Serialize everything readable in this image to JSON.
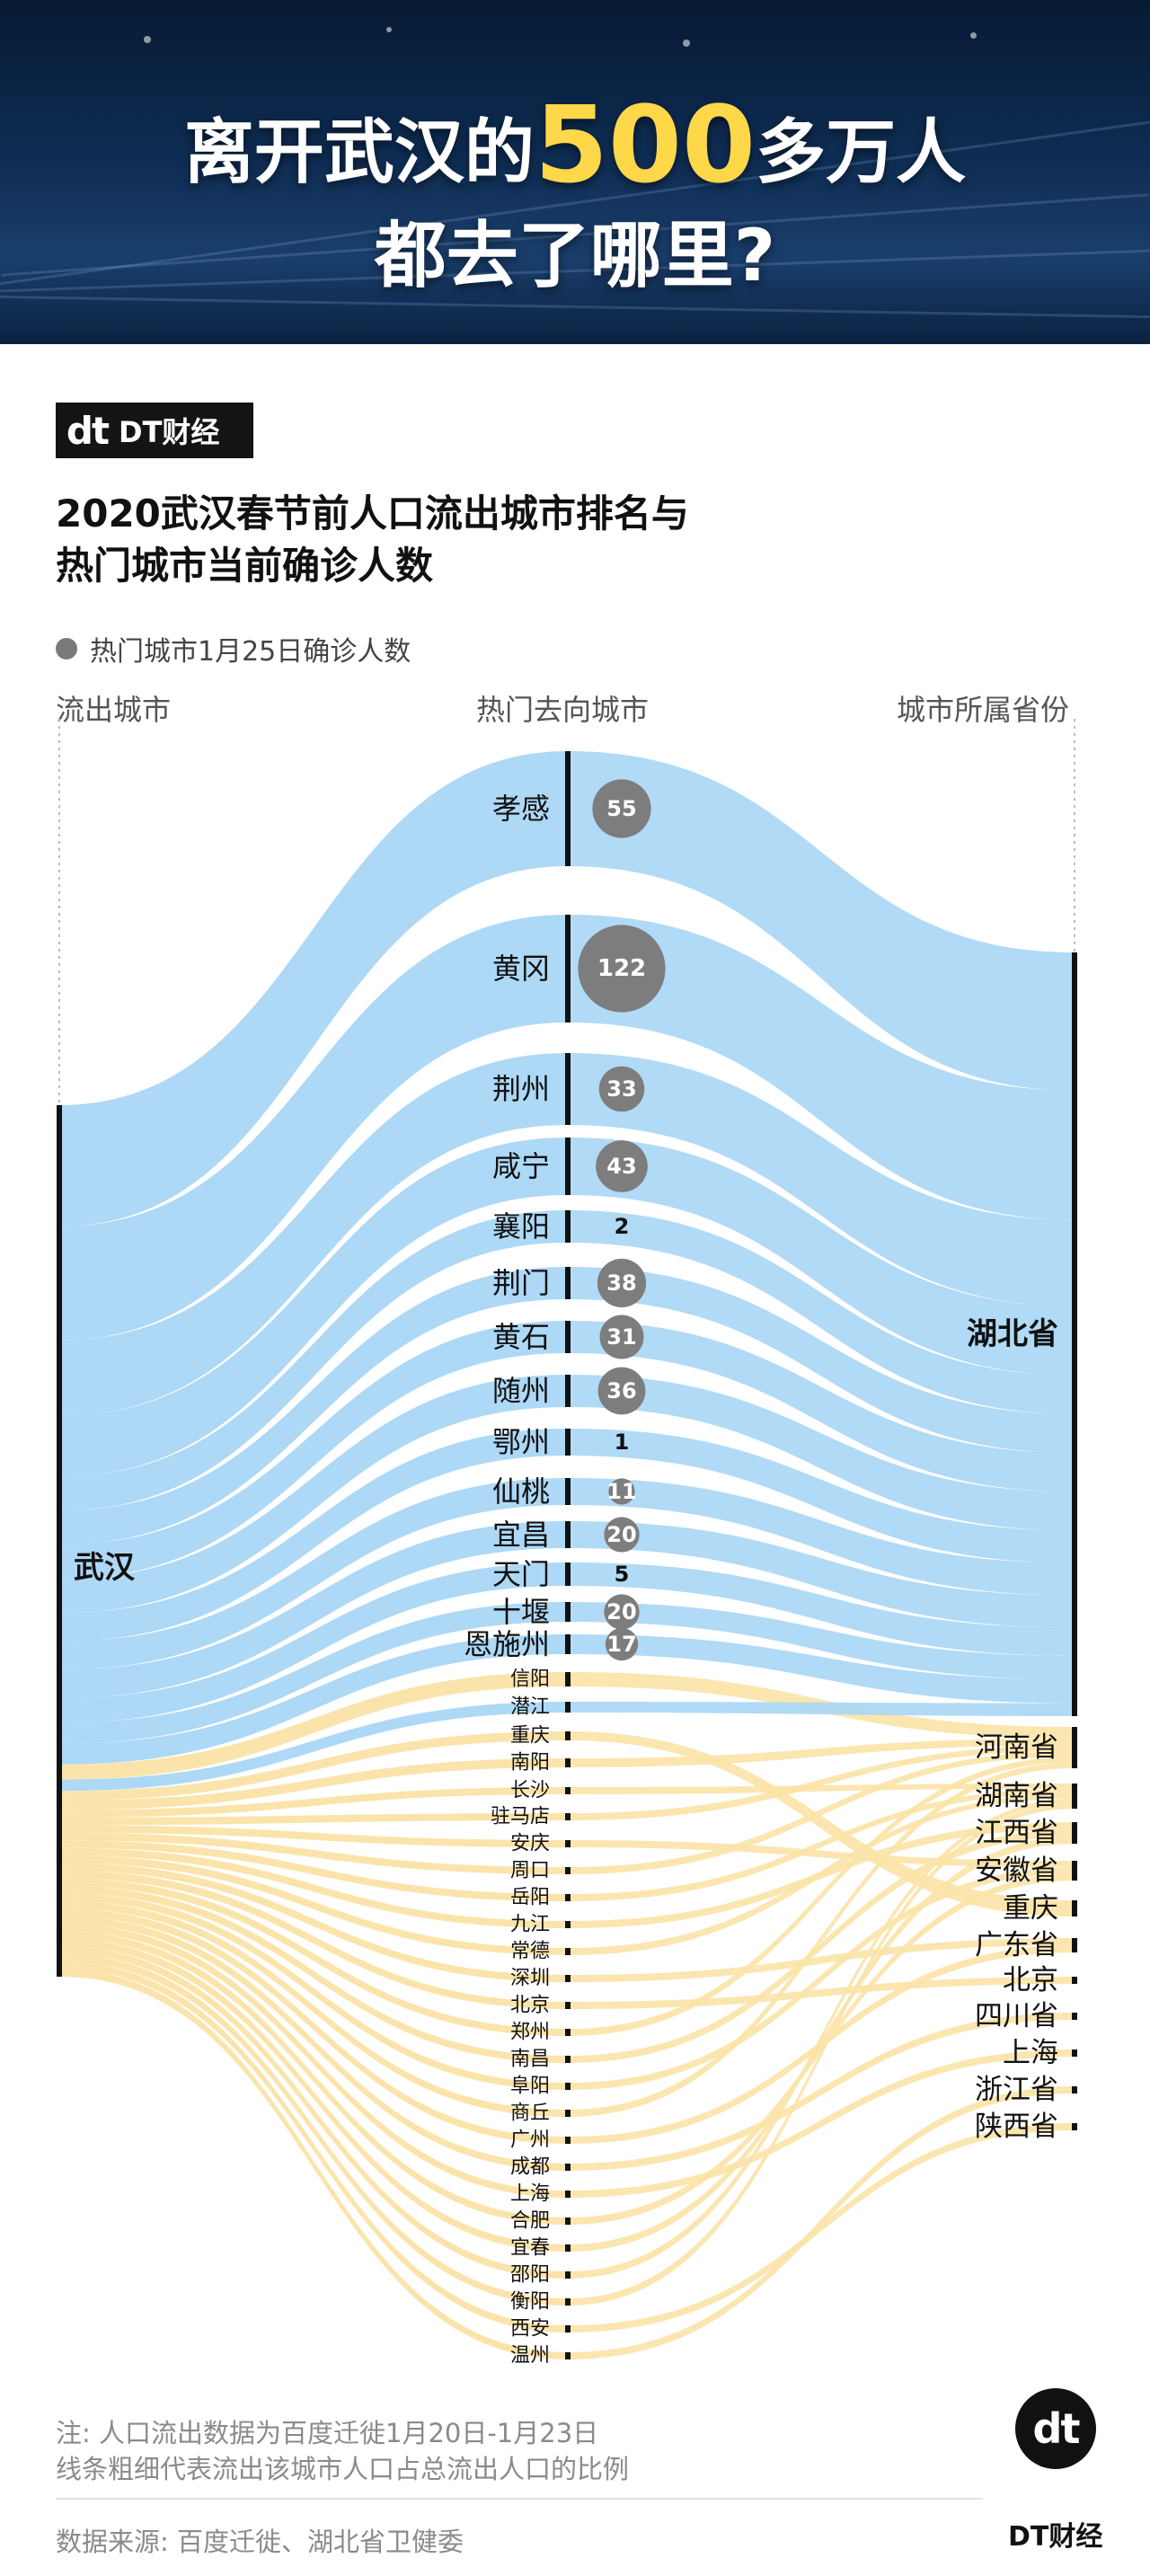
{
  "header": {
    "title_part1": "离开武汉的",
    "title_highlight": "500",
    "title_part2": "多万人",
    "title_line2": "都去了哪里?"
  },
  "brand": {
    "mark": "dt",
    "name": "DT财经"
  },
  "subtitle": {
    "line1": "2020武汉春节前人口流出城市排名与",
    "line2": "热门城市当前确诊人数"
  },
  "legend": {
    "label": "热门城市1月25日确诊人数",
    "dot_color": "#7a7a7a"
  },
  "columns": {
    "source": "流出城市",
    "target": "热门去向城市",
    "province": "城市所属省份"
  },
  "colors": {
    "hubei_flow": "#a9d6f5",
    "hubei_flow_dark": "#7fbde9",
    "other_flow": "#fbe3a7",
    "bubble": "#7d7d7d",
    "bar": "#111111"
  },
  "chart_data": {
    "type": "sankey",
    "source": "武汉",
    "cities": [
      {
        "name": "孝感",
        "confirmed": 55,
        "province": "湖北省"
      },
      {
        "name": "黄冈",
        "confirmed": 122,
        "province": "湖北省"
      },
      {
        "name": "荆州",
        "confirmed": 33,
        "province": "湖北省"
      },
      {
        "name": "咸宁",
        "confirmed": 43,
        "province": "湖北省"
      },
      {
        "name": "襄阳",
        "confirmed": 2,
        "province": "湖北省"
      },
      {
        "name": "荆门",
        "confirmed": 38,
        "province": "湖北省"
      },
      {
        "name": "黄石",
        "confirmed": 31,
        "province": "湖北省"
      },
      {
        "name": "随州",
        "confirmed": 36,
        "province": "湖北省"
      },
      {
        "name": "鄂州",
        "confirmed": 1,
        "province": "湖北省"
      },
      {
        "name": "仙桃",
        "confirmed": 11,
        "province": "湖北省"
      },
      {
        "name": "宜昌",
        "confirmed": 20,
        "province": "湖北省"
      },
      {
        "name": "天门",
        "confirmed": 5,
        "province": "湖北省"
      },
      {
        "name": "十堰",
        "confirmed": 20,
        "province": "湖北省"
      },
      {
        "name": "恩施州",
        "confirmed": 17,
        "province": "湖北省"
      },
      {
        "name": "信阳",
        "province": "河南省"
      },
      {
        "name": "潜江",
        "province": "湖北省"
      },
      {
        "name": "重庆",
        "province": "重庆"
      },
      {
        "name": "南阳",
        "province": "河南省"
      },
      {
        "name": "长沙",
        "province": "湖南省"
      },
      {
        "name": "驻马店",
        "province": "河南省"
      },
      {
        "name": "安庆",
        "province": "安徽省"
      },
      {
        "name": "周口",
        "province": "河南省"
      },
      {
        "name": "岳阳",
        "province": "湖南省"
      },
      {
        "name": "九江",
        "province": "江西省"
      },
      {
        "name": "常德",
        "province": "湖南省"
      },
      {
        "name": "深圳",
        "province": "广东省"
      },
      {
        "name": "北京",
        "province": "北京"
      },
      {
        "name": "郑州",
        "province": "河南省"
      },
      {
        "name": "南昌",
        "province": "江西省"
      },
      {
        "name": "阜阳",
        "province": "安徽省"
      },
      {
        "name": "商丘",
        "province": "河南省"
      },
      {
        "name": "广州",
        "province": "广东省"
      },
      {
        "name": "成都",
        "province": "四川省"
      },
      {
        "name": "上海",
        "province": "上海"
      },
      {
        "name": "合肥",
        "province": "安徽省"
      },
      {
        "name": "宜春",
        "province": "江西省"
      },
      {
        "name": "邵阳",
        "province": "湖南省"
      },
      {
        "name": "衡阳",
        "province": "湖南省"
      },
      {
        "name": "西安",
        "province": "陕西省"
      },
      {
        "name": "温州",
        "province": "浙江省"
      }
    ],
    "provinces": [
      "湖北省",
      "河南省",
      "湖南省",
      "江西省",
      "安徽省",
      "重庆",
      "广东省",
      "北京",
      "四川省",
      "上海",
      "浙江省",
      "陕西省"
    ]
  },
  "notes": {
    "line1": "注: 人口流出数据为百度迁徙1月20日-1月23日",
    "line2": "线条粗细代表流出该城市人口占总流出人口的比例",
    "source": "数据来源: 百度迁徙、湖北省卫健委"
  },
  "footer_logo": {
    "mark": "dt",
    "name": "DT财经"
  }
}
